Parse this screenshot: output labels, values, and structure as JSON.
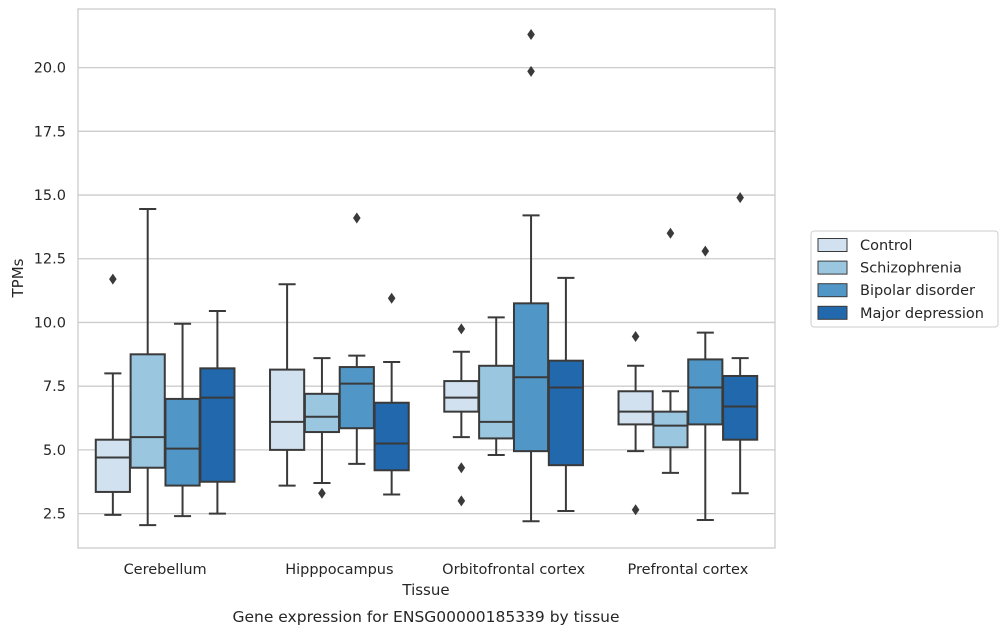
{
  "chart_data": {
    "type": "box",
    "title": "",
    "caption": "Gene expression for ENSG00000185339 by tissue",
    "xlabel": "Tissue",
    "ylabel": "TPMs",
    "ylim": [
      1.15,
      22.3
    ],
    "yticks": [
      "2.5",
      "5.0",
      "7.5",
      "10.0",
      "12.5",
      "15.0",
      "17.5",
      "20.0"
    ],
    "grid": "horizontal",
    "legend_position": "right",
    "categories": [
      "Cerebellum",
      "Hipppocampus",
      "Orbitofrontal cortex",
      "Prefrontal cortex"
    ],
    "series": [
      {
        "name": "Control",
        "color": "#d1e1f0",
        "boxes": [
          {
            "whislo": 2.45,
            "q1": 3.35,
            "med": 4.7,
            "q3": 5.4,
            "whishi": 8.0,
            "fliers": [
              11.7
            ]
          },
          {
            "whislo": 3.6,
            "q1": 5.0,
            "med": 6.1,
            "q3": 8.15,
            "whishi": 11.5,
            "fliers": []
          },
          {
            "whislo": 5.5,
            "q1": 6.5,
            "med": 7.05,
            "q3": 7.7,
            "whishi": 8.85,
            "fliers": [
              9.75,
              4.3,
              3.0
            ]
          },
          {
            "whislo": 4.95,
            "q1": 6.0,
            "med": 6.5,
            "q3": 7.3,
            "whishi": 8.3,
            "fliers": [
              9.45,
              2.65
            ]
          }
        ]
      },
      {
        "name": "Schizophrenia",
        "color": "#9ac6df",
        "boxes": [
          {
            "whislo": 2.05,
            "q1": 4.3,
            "med": 5.5,
            "q3": 8.75,
            "whishi": 14.45,
            "fliers": []
          },
          {
            "whislo": 3.7,
            "q1": 5.7,
            "med": 6.3,
            "q3": 7.2,
            "whishi": 8.6,
            "fliers": [
              3.3
            ]
          },
          {
            "whislo": 4.8,
            "q1": 5.45,
            "med": 6.1,
            "q3": 8.3,
            "whishi": 10.2,
            "fliers": []
          },
          {
            "whislo": 4.1,
            "q1": 5.1,
            "med": 5.95,
            "q3": 6.5,
            "whishi": 7.3,
            "fliers": [
              13.5
            ]
          }
        ]
      },
      {
        "name": "Bipolar disorder",
        "color": "#5096c6",
        "boxes": [
          {
            "whislo": 2.4,
            "q1": 3.6,
            "med": 5.05,
            "q3": 7.0,
            "whishi": 9.95,
            "fliers": []
          },
          {
            "whislo": 4.45,
            "q1": 5.85,
            "med": 7.6,
            "q3": 8.25,
            "whishi": 8.7,
            "fliers": [
              14.1
            ]
          },
          {
            "whislo": 2.2,
            "q1": 4.95,
            "med": 7.85,
            "q3": 10.75,
            "whishi": 14.2,
            "fliers": [
              19.85,
              21.3
            ]
          },
          {
            "whislo": 2.25,
            "q1": 6.0,
            "med": 7.45,
            "q3": 8.55,
            "whishi": 9.6,
            "fliers": [
              12.8
            ]
          }
        ]
      },
      {
        "name": "Major depression",
        "color": "#2168ac",
        "boxes": [
          {
            "whislo": 2.5,
            "q1": 3.75,
            "med": 7.05,
            "q3": 8.2,
            "whishi": 10.45,
            "fliers": []
          },
          {
            "whislo": 3.25,
            "q1": 4.2,
            "med": 5.25,
            "q3": 6.85,
            "whishi": 8.45,
            "fliers": [
              10.95
            ]
          },
          {
            "whislo": 2.6,
            "q1": 4.4,
            "med": 7.45,
            "q3": 8.5,
            "whishi": 11.75,
            "fliers": []
          },
          {
            "whislo": 3.3,
            "q1": 5.4,
            "med": 6.7,
            "q3": 7.9,
            "whishi": 8.6,
            "fliers": [
              14.9
            ]
          }
        ]
      }
    ]
  }
}
